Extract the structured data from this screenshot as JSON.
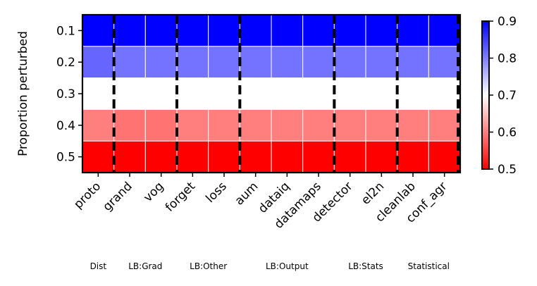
{
  "chart_data": {
    "type": "heatmap",
    "ylabel": "Proportion perturbed",
    "rows": [
      "0.1",
      "0.2",
      "0.3",
      "0.4",
      "0.5"
    ],
    "columns": [
      "proto",
      "grand",
      "vog",
      "forget",
      "loss",
      "aum",
      "dataiq",
      "datamaps",
      "detector",
      "el2n",
      "cleanlab",
      "conf_agr"
    ],
    "values": [
      [
        0.9,
        0.9,
        0.9,
        0.9,
        0.9,
        0.9,
        0.9,
        0.9,
        0.9,
        0.9,
        0.9,
        0.9
      ],
      [
        0.82,
        0.81,
        0.81,
        0.81,
        0.81,
        0.81,
        0.81,
        0.81,
        0.81,
        0.81,
        0.81,
        0.81
      ],
      [
        0.7,
        0.7,
        0.7,
        0.7,
        0.7,
        0.7,
        0.7,
        0.7,
        0.7,
        0.7,
        0.7,
        0.7
      ],
      [
        0.6,
        0.59,
        0.59,
        0.6,
        0.6,
        0.6,
        0.6,
        0.6,
        0.6,
        0.6,
        0.6,
        0.6
      ],
      [
        0.5,
        0.5,
        0.5,
        0.5,
        0.5,
        0.5,
        0.5,
        0.5,
        0.5,
        0.5,
        0.5,
        0.5
      ]
    ],
    "colorbar": {
      "min": 0.5,
      "max": 0.9,
      "ticks": [
        "0.5",
        "0.6",
        "0.7",
        "0.8",
        "0.9"
      ]
    },
    "colormap": {
      "low": "#ff0000",
      "mid": "#ffffff",
      "high": "#0000ff"
    },
    "groups": [
      {
        "label": "Dist",
        "columns": [
          "proto"
        ]
      },
      {
        "label": "LB:Grad",
        "columns": [
          "grand",
          "vog"
        ]
      },
      {
        "label": "LB:Other",
        "columns": [
          "forget",
          "loss"
        ]
      },
      {
        "label": "LB:Output",
        "columns": [
          "aum",
          "dataiq",
          "datamaps"
        ]
      },
      {
        "label": "LB:Stats",
        "columns": [
          "detector",
          "el2n"
        ]
      },
      {
        "label": "Statistical",
        "columns": [
          "cleanlab",
          "conf_agr"
        ]
      }
    ]
  }
}
